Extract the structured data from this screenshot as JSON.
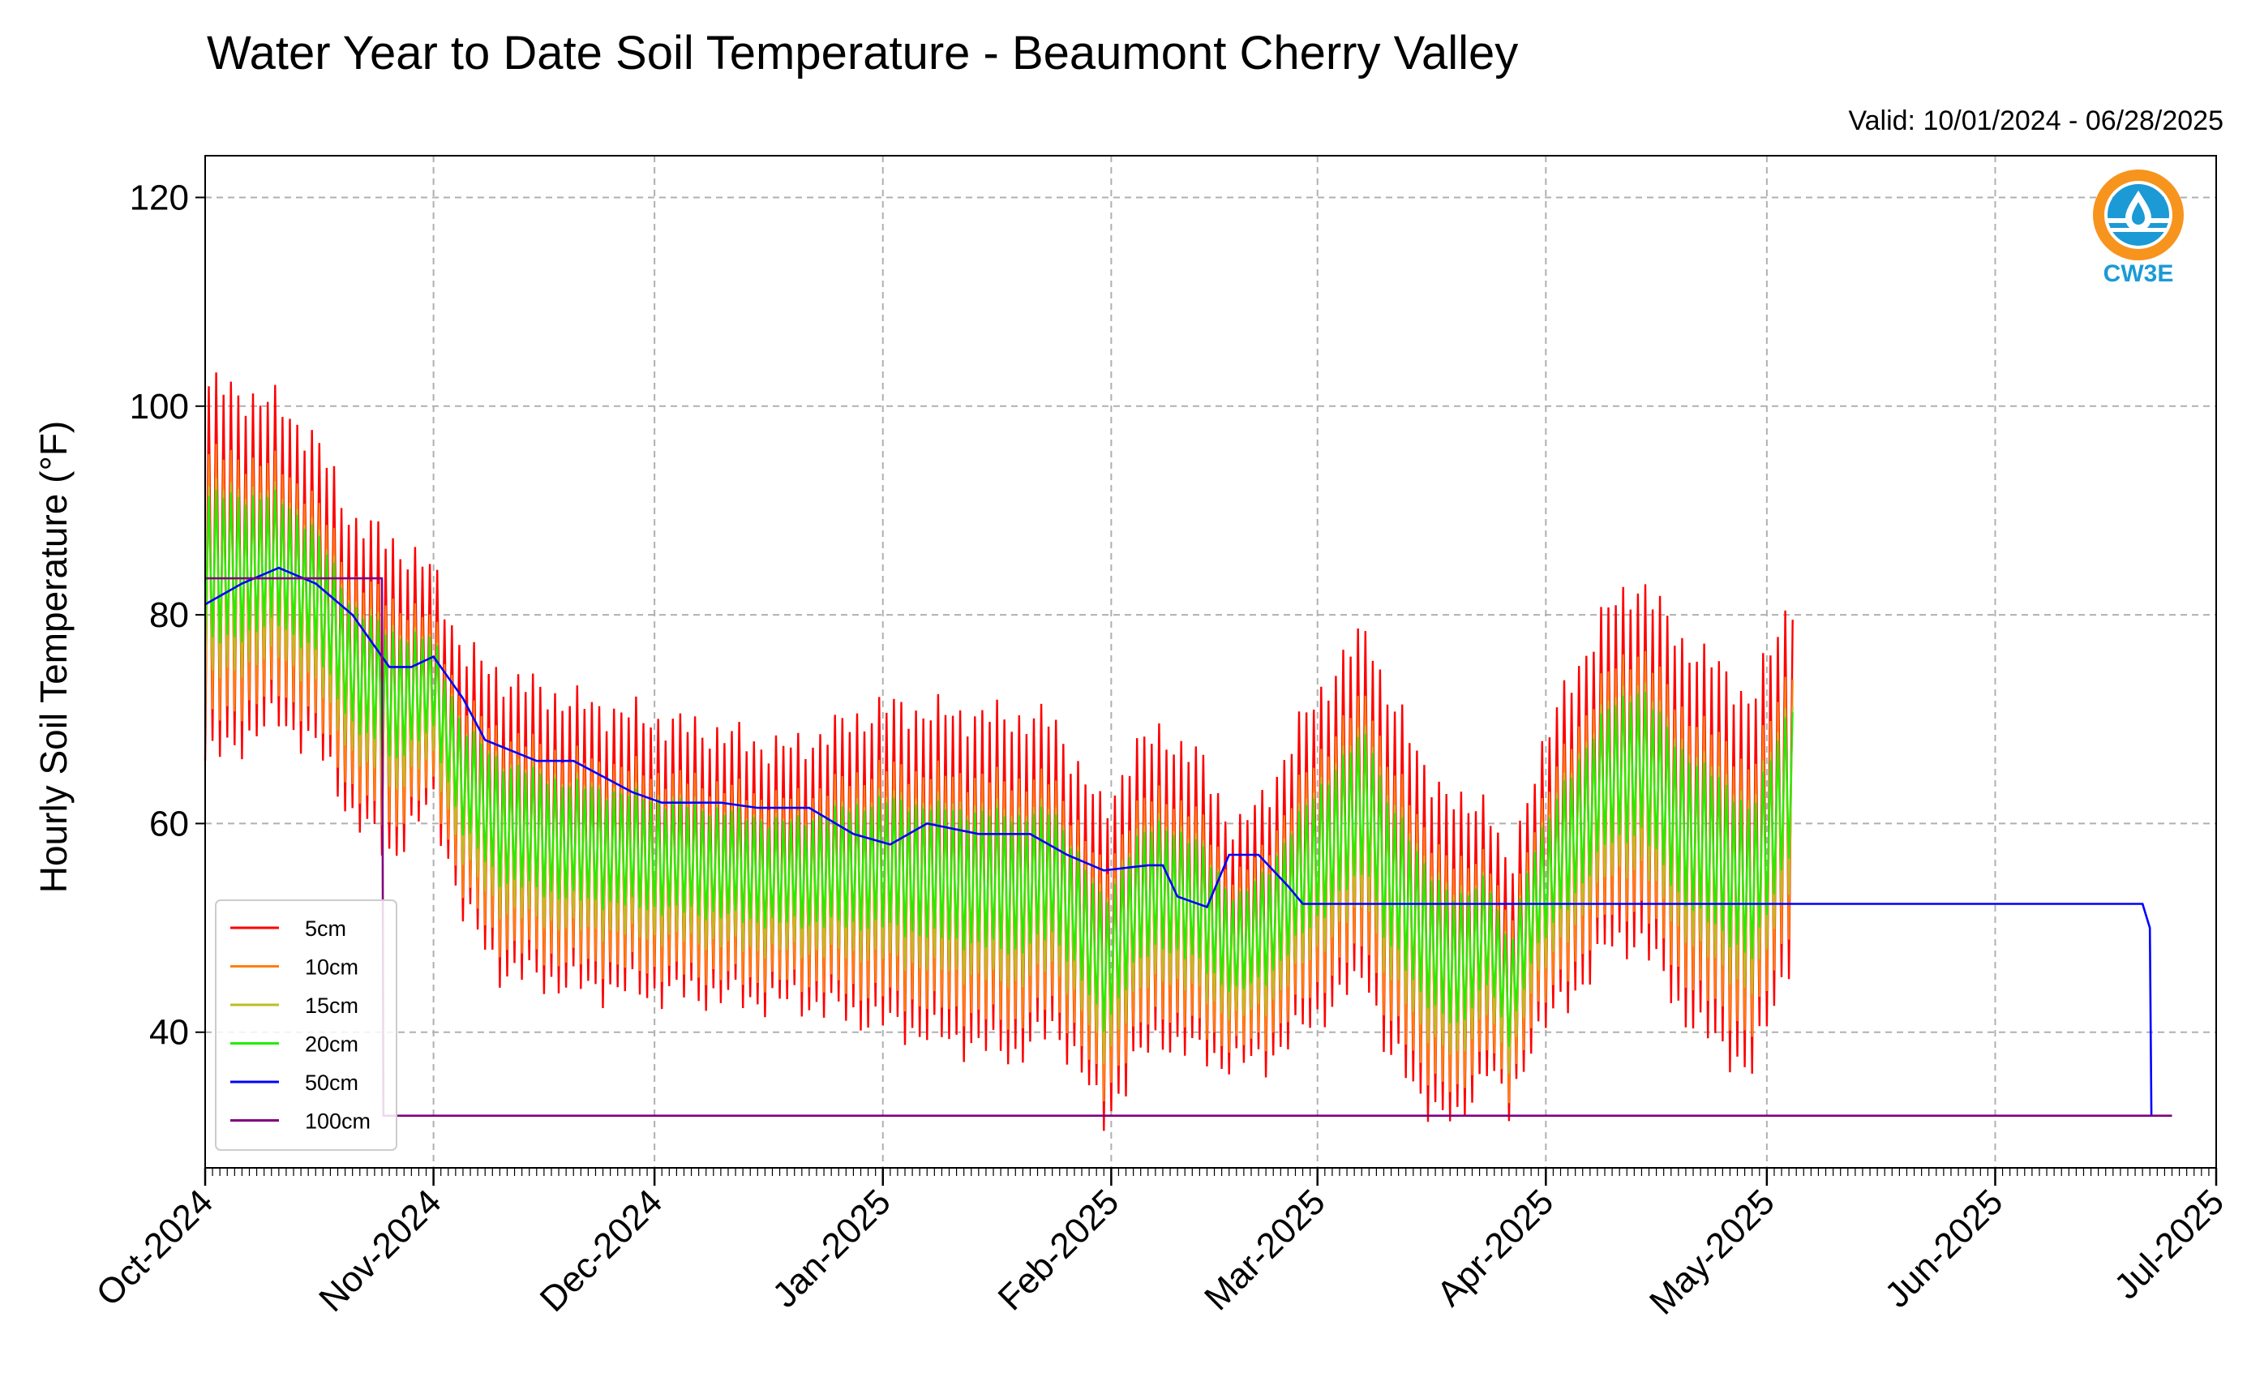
{
  "chart_data": {
    "type": "line",
    "title": "Water Year to Date Soil Temperature - Beaumont Cherry Valley",
    "subtitle": "Valid: 10/01/2024 - 06/28/2025",
    "xlabel": "",
    "ylabel": "Hourly Soil Temperature (°F)",
    "ylim": [
      27,
      124
    ],
    "yticks": [
      40,
      60,
      80,
      100,
      120
    ],
    "xlim": [
      "2024-10-01",
      "2025-07-01"
    ],
    "xticks": [
      "Oct-2024",
      "Nov-2024",
      "Dec-2024",
      "Jan-2025",
      "Feb-2025",
      "Mar-2025",
      "Apr-2025",
      "May-2025",
      "Jun-2025",
      "Jul-2025"
    ],
    "grid": true,
    "legend_position": "lower-left",
    "logo": {
      "text": "CW3E",
      "colors": {
        "ring": "#f7941d",
        "drop": "#1b9ad6",
        "text": "#1b9ad6"
      }
    },
    "daily_index_note": "daily series: one value per day starting 10/01/2024",
    "amplitude_keys": {
      "5cm": "daily max / min of hourly temperature",
      "10cm": "daily max / min",
      "15cm": "daily max / min",
      "20cm": "daily max / min",
      "50cm": "daily mean",
      "100cm": "daily mean"
    },
    "series": [
      {
        "name": "5cm",
        "color": "#ff0000"
      },
      {
        "name": "10cm",
        "color": "#ff7f0e"
      },
      {
        "name": "15cm",
        "color": "#bcbd22"
      },
      {
        "name": "20cm",
        "color": "#22ee00"
      },
      {
        "name": "50cm",
        "color": "#0000ff"
      },
      {
        "name": "100cm",
        "color": "#800080"
      }
    ],
    "daily_mean_20cm": [
      [
        0,
        84
      ],
      [
        10,
        85
      ],
      [
        15,
        82
      ],
      [
        20,
        75
      ],
      [
        25,
        72
      ],
      [
        31,
        73
      ],
      [
        35,
        64
      ],
      [
        40,
        60
      ],
      [
        50,
        58
      ],
      [
        60,
        57
      ],
      [
        70,
        56
      ],
      [
        78,
        55
      ],
      [
        92,
        56
      ],
      [
        100,
        55
      ],
      [
        110,
        54
      ],
      [
        115,
        55
      ],
      [
        118,
        52
      ],
      [
        122,
        46
      ],
      [
        126,
        52
      ],
      [
        130,
        54
      ],
      [
        135,
        52
      ],
      [
        140,
        48
      ],
      [
        144,
        50
      ],
      [
        150,
        56
      ],
      [
        155,
        60
      ],
      [
        158,
        62
      ],
      [
        160,
        56
      ],
      [
        165,
        50
      ],
      [
        170,
        46
      ],
      [
        174,
        50
      ],
      [
        177,
        43
      ],
      [
        180,
        52
      ],
      [
        185,
        58
      ],
      [
        190,
        64
      ],
      [
        195,
        66
      ],
      [
        200,
        60
      ],
      [
        205,
        57
      ],
      [
        210,
        54
      ],
      [
        215,
        64
      ],
      [
        220,
        68
      ],
      [
        225,
        72
      ],
      [
        230,
        60
      ],
      [
        235,
        64
      ],
      [
        240,
        66
      ],
      [
        245,
        60
      ],
      [
        250,
        68
      ],
      [
        255,
        68
      ],
      [
        257,
        58
      ],
      [
        260,
        60
      ],
      [
        265,
        68
      ],
      [
        271,
        74
      ],
      [
        277,
        86
      ],
      [
        282,
        84
      ],
      [
        288,
        80
      ]
    ],
    "daily_amplitude_5cm": [
      [
        0,
        36
      ],
      [
        10,
        30
      ],
      [
        20,
        28
      ],
      [
        25,
        30
      ],
      [
        31,
        22
      ],
      [
        40,
        28
      ],
      [
        60,
        26
      ],
      [
        80,
        24
      ],
      [
        92,
        30
      ],
      [
        110,
        32
      ],
      [
        118,
        28
      ],
      [
        125,
        30
      ],
      [
        135,
        28
      ],
      [
        140,
        22
      ],
      [
        150,
        30
      ],
      [
        160,
        34
      ],
      [
        170,
        30
      ],
      [
        177,
        22
      ],
      [
        185,
        30
      ],
      [
        195,
        34
      ],
      [
        205,
        36
      ],
      [
        215,
        34
      ],
      [
        225,
        36
      ],
      [
        235,
        38
      ],
      [
        245,
        40
      ],
      [
        257,
        40
      ],
      [
        271,
        40
      ],
      [
        288,
        50
      ]
    ],
    "series_50cm_daily": [
      [
        0,
        81
      ],
      [
        5,
        83
      ],
      [
        10,
        84.5
      ],
      [
        15,
        83
      ],
      [
        20,
        80
      ],
      [
        25,
        75
      ],
      [
        28,
        75
      ],
      [
        31,
        76
      ],
      [
        35,
        72
      ],
      [
        38,
        68
      ],
      [
        45,
        66
      ],
      [
        50,
        66
      ],
      [
        58,
        63
      ],
      [
        62,
        62
      ],
      [
        70,
        62
      ],
      [
        75,
        61.5
      ],
      [
        82,
        61.5
      ],
      [
        88,
        59
      ],
      [
        93,
        58
      ],
      [
        98,
        60
      ],
      [
        105,
        59
      ],
      [
        112,
        59
      ],
      [
        117,
        57
      ],
      [
        122,
        55.5
      ],
      [
        128,
        56
      ],
      [
        130,
        56
      ],
      [
        132,
        53
      ],
      [
        136,
        52
      ],
      [
        139,
        57
      ],
      [
        143,
        57
      ],
      [
        147,
        54
      ],
      [
        149,
        52.3
      ],
      [
        263,
        52.3
      ],
      [
        264,
        50
      ],
      [
        264.2,
        32
      ]
    ],
    "series_100cm_daily": [
      [
        0,
        83.5
      ],
      [
        24,
        83.5
      ],
      [
        24.2,
        32
      ],
      [
        264,
        32
      ],
      [
        267,
        32
      ]
    ],
    "gap_days": [
      268,
      286
    ]
  }
}
